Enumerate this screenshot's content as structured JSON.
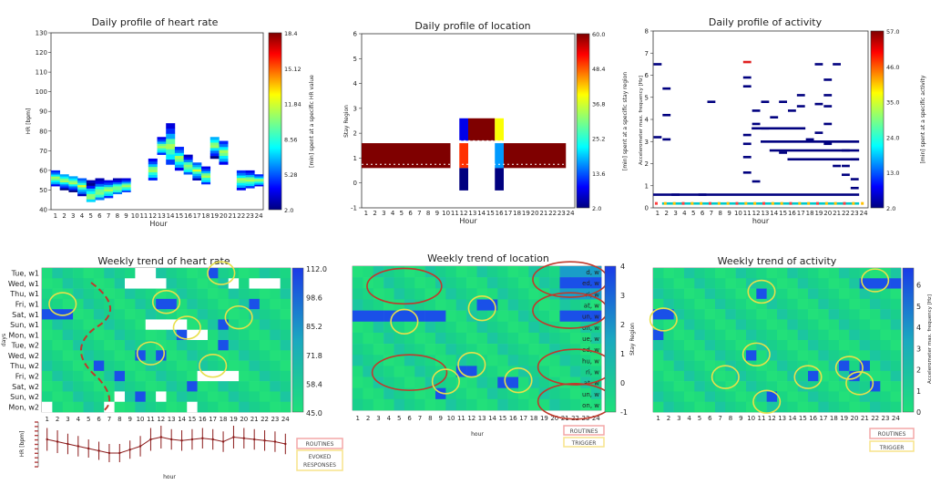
{
  "colormap": [
    "#00007f",
    "#0000ff",
    "#0080ff",
    "#00ffff",
    "#80ff80",
    "#ffff00",
    "#ff8000",
    "#ff0000",
    "#7f0000"
  ],
  "colors": {
    "weekly_base": "#1ad683",
    "weekly_mid": "#1bc6a0",
    "weekly_high": "#1a60e0",
    "ellipse_red": "#c0392b",
    "ellipse_yellow": "#e8e04a",
    "dashed": "#c0392b",
    "legend_red": "#f4a7a7",
    "legend_yellow": "#f7e38a",
    "hr_line": "#8b1a1a"
  },
  "hours": [
    "1",
    "2",
    "3",
    "4",
    "5",
    "6",
    "7",
    "8",
    "9",
    "10",
    "11",
    "12",
    "13",
    "14",
    "15",
    "16",
    "17",
    "18",
    "19",
    "20",
    "21",
    "22",
    "23",
    "24"
  ],
  "chart_data": [
    {
      "id": "hr_daily",
      "type": "heatmap",
      "title": "Daily profile of heart rate",
      "xlabel": "Hour",
      "ylabel": "HR [bpm]",
      "xlim": [
        1,
        24
      ],
      "ylim": [
        40,
        130
      ],
      "yticks": [
        "40",
        "50",
        "60",
        "70",
        "80",
        "90",
        "100",
        "110",
        "120",
        "130"
      ],
      "colorbar": {
        "ticks": [
          "2.0",
          "5.28",
          "8.56",
          "11.84",
          "15.12",
          "18.4"
        ],
        "label": "[min] spent at a specific HR value",
        "range": [
          2.0,
          18.4
        ]
      },
      "cells": [
        {
          "hour": 1,
          "hr": [
            52,
            60
          ],
          "peak": 56
        },
        {
          "hour": 2,
          "hr": [
            50,
            58
          ],
          "peak": 55
        },
        {
          "hour": 3,
          "hr": [
            49,
            57
          ],
          "peak": 54
        },
        {
          "hour": 4,
          "hr": [
            47,
            56
          ],
          "peak": 52
        },
        {
          "hour": 5,
          "hr": [
            44,
            55
          ],
          "peak": 47
        },
        {
          "hour": 6,
          "hr": [
            45,
            56
          ],
          "peak": 49
        },
        {
          "hour": 7,
          "hr": [
            46,
            55
          ],
          "peak": 50
        },
        {
          "hour": 8,
          "hr": [
            48,
            56
          ],
          "peak": 51
        },
        {
          "hour": 9,
          "hr": [
            49,
            56
          ],
          "peak": 52
        },
        {
          "hour": 12,
          "hr": [
            55,
            66
          ],
          "peak": 60
        },
        {
          "hour": 13,
          "hr": [
            68,
            77
          ],
          "peak": 72
        },
        {
          "hour": 14,
          "hr": [
            63,
            84
          ],
          "peak": 72
        },
        {
          "hour": 15,
          "hr": [
            60,
            72
          ],
          "peak": 66
        },
        {
          "hour": 16,
          "hr": [
            58,
            68
          ],
          "peak": 62
        },
        {
          "hour": 17,
          "hr": [
            55,
            64
          ],
          "peak": 60
        },
        {
          "hour": 18,
          "hr": [
            53,
            62
          ],
          "peak": 57
        },
        {
          "hour": 19,
          "hr": [
            66,
            77
          ],
          "peak": 73
        },
        {
          "hour": 20,
          "hr": [
            63,
            75
          ],
          "peak": 69
        },
        {
          "hour": 22,
          "hr": [
            50,
            60
          ],
          "peak": 55
        },
        {
          "hour": 23,
          "hr": [
            51,
            60
          ],
          "peak": 55
        },
        {
          "hour": 24,
          "hr": [
            52,
            58
          ],
          "peak": 55
        }
      ]
    },
    {
      "id": "loc_daily",
      "type": "heatmap",
      "title": "Daily profile of location",
      "xlabel": "Hour",
      "ylabel": "Stay Region",
      "xlim": [
        1,
        24
      ],
      "ylim": [
        -1,
        6
      ],
      "yticks": [
        "-1",
        "0",
        "1",
        "2",
        "3",
        "4",
        "5",
        "6"
      ],
      "colorbar": {
        "ticks": [
          "2.0",
          "13.6",
          "25.2",
          "36.8",
          "48.4",
          "60.0"
        ],
        "label": "[min] spent at a specific stay region",
        "range": [
          2.0,
          60.0
        ]
      },
      "cells": [
        {
          "h0": 1,
          "h1": 11,
          "region": 1,
          "value": 60
        },
        {
          "h0": 12,
          "h1": 13,
          "region": 2,
          "value": 8
        },
        {
          "h0": 12,
          "h1": 13,
          "region": 1,
          "value": 50
        },
        {
          "h0": 12,
          "h1": 13,
          "region": 0,
          "value": 2
        },
        {
          "h0": 13,
          "h1": 16,
          "region": 2,
          "value": 60
        },
        {
          "h0": 16,
          "h1": 17,
          "region": 2,
          "value": 38
        },
        {
          "h0": 16,
          "h1": 17,
          "region": 1,
          "value": 18
        },
        {
          "h0": 16,
          "h1": 17,
          "region": 0,
          "value": 2
        },
        {
          "h0": 17,
          "h1": 24,
          "region": 1,
          "value": 60
        }
      ]
    },
    {
      "id": "act_daily",
      "type": "heatmap",
      "title": "Daily profile of activity",
      "xlabel": "hour",
      "ylabel": "Accelerometer max. frequency [Hz]",
      "xlim": [
        1,
        24
      ],
      "ylim": [
        0,
        8
      ],
      "yticks": [
        "0",
        "1",
        "2",
        "3",
        "4",
        "5",
        "6",
        "7",
        "8"
      ],
      "colorbar": {
        "ticks": [
          "2.0",
          "13.0",
          "24.0",
          "35.0",
          "46.0",
          "57.0"
        ],
        "label": "[min] spent at a specific activity",
        "range": [
          2.0,
          57.0
        ]
      },
      "segments": [
        {
          "h": 1,
          "f": 6.5
        },
        {
          "h": 1,
          "f": 3.2
        },
        {
          "h": 2,
          "f": 5.4
        },
        {
          "h": 2,
          "f": 4.2
        },
        {
          "h": 2,
          "f": 3.1
        },
        {
          "h": 3,
          "f": 0.6
        },
        {
          "h": 6,
          "f": 0.6
        },
        {
          "h": 7,
          "f": 4.8
        },
        {
          "h": 11,
          "f": 6.6,
          "hot": 1
        },
        {
          "h": 11,
          "f": 5.9
        },
        {
          "h": 11,
          "f": 5.5
        },
        {
          "h": 11,
          "f": 3.3
        },
        {
          "h": 11,
          "f": 2.9
        },
        {
          "h": 11,
          "f": 2.3
        },
        {
          "h": 11,
          "f": 1.6
        },
        {
          "h": 12,
          "f": 4.4
        },
        {
          "h": 12,
          "f": 3.8
        },
        {
          "h": 12,
          "f": 1.2
        },
        {
          "h": 13,
          "f": 4.8
        },
        {
          "h": 13,
          "f": 3.6
        },
        {
          "h": 14,
          "f": 4.1
        },
        {
          "h": 15,
          "f": 4.8
        },
        {
          "h": 15,
          "f": 2.5
        },
        {
          "h": 16,
          "f": 4.4
        },
        {
          "h": 17,
          "f": 5.1
        },
        {
          "h": 17,
          "f": 4.6
        },
        {
          "h": 18,
          "f": 3.1
        },
        {
          "h": 19,
          "f": 6.5
        },
        {
          "h": 19,
          "f": 4.7
        },
        {
          "h": 19,
          "f": 3.4
        },
        {
          "h": 20,
          "f": 5.8
        },
        {
          "h": 20,
          "f": 5.1
        },
        {
          "h": 20,
          "f": 4.6
        },
        {
          "h": 20,
          "f": 3.8
        },
        {
          "h": 20,
          "f": 2.9
        },
        {
          "h": 21,
          "f": 6.5
        },
        {
          "h": 21,
          "f": 1.9
        },
        {
          "h": 22,
          "f": 2.6
        },
        {
          "h": 22,
          "f": 1.9
        },
        {
          "h": 22,
          "f": 1.5
        },
        {
          "h": 23,
          "f": 2.2
        },
        {
          "h": 23,
          "f": 1.3
        },
        {
          "h": 23,
          "f": 0.9
        }
      ],
      "bands": [
        {
          "h0": 12,
          "h1": 18,
          "f": 3.6
        },
        {
          "h0": 13,
          "h1": 24,
          "f": 3.0
        },
        {
          "h0": 14,
          "h1": 24,
          "f": 2.6
        },
        {
          "h0": 16,
          "h1": 24,
          "f": 2.2
        },
        {
          "h0": 1,
          "h1": 24,
          "f": 0.6
        },
        {
          "h0": 2,
          "h1": 24,
          "f": 0.2
        }
      ]
    },
    {
      "id": "hr_weekly",
      "type": "heatmap",
      "title": "Weekly trend of heart rate",
      "xlabel": "",
      "ylabel": "days",
      "rows": [
        "Tue, w1",
        "Wed, w1",
        "Thu, w1",
        "Fri, w1",
        "Sat, w1",
        "Sun, w1",
        "Mon, w1",
        "Tue, w2",
        "Wed, w2",
        "Thu, w2",
        "Fri, w2",
        "Sat, w2",
        "Sun, w2",
        "Mon, w2"
      ],
      "colorbar": {
        "ticks": [
          "45.0",
          "58.4",
          "71.8",
          "85.2",
          "98.6",
          "112.0"
        ],
        "range": [
          45,
          112
        ]
      },
      "missing": [
        [
          0,
          9
        ],
        [
          0,
          10
        ],
        [
          1,
          8
        ],
        [
          1,
          9
        ],
        [
          1,
          10
        ],
        [
          1,
          11
        ],
        [
          1,
          18
        ],
        [
          1,
          20
        ],
        [
          1,
          21
        ],
        [
          1,
          22
        ],
        [
          5,
          10
        ],
        [
          5,
          11
        ],
        [
          5,
          12
        ],
        [
          5,
          13
        ],
        [
          6,
          14
        ],
        [
          6,
          15
        ],
        [
          10,
          15
        ],
        [
          10,
          16
        ],
        [
          10,
          17
        ],
        [
          10,
          18
        ],
        [
          12,
          7
        ],
        [
          12,
          11
        ],
        [
          13,
          0
        ],
        [
          13,
          6
        ],
        [
          13,
          14
        ]
      ],
      "highs": [
        [
          0,
          16
        ],
        [
          3,
          11
        ],
        [
          3,
          12
        ],
        [
          4,
          0
        ],
        [
          4,
          1
        ],
        [
          4,
          2
        ],
        [
          6,
          13
        ],
        [
          8,
          9
        ],
        [
          8,
          11
        ],
        [
          10,
          7
        ],
        [
          11,
          14
        ],
        [
          5,
          17
        ],
        [
          9,
          5
        ],
        [
          12,
          9
        ],
        [
          3,
          20
        ],
        [
          7,
          17
        ]
      ],
      "ellipses": [
        [
          2,
          3.5,
          "y"
        ],
        [
          12,
          3.3,
          "y"
        ],
        [
          10.5,
          8.3,
          "y"
        ],
        [
          16.5,
          9.5,
          "y"
        ],
        [
          14,
          5.8,
          "y"
        ],
        [
          19,
          4.8,
          "y"
        ],
        [
          17.3,
          0.5,
          "y"
        ]
      ]
    },
    {
      "id": "loc_weekly",
      "type": "heatmap",
      "title": "Weekly trend of location",
      "xlabel": "hour",
      "ylabel": "Stay Region",
      "rows": [
        "d, w",
        "ed, w",
        "ri, w",
        "at, w",
        "un, w",
        "on, w",
        "ue, w",
        "ed, w",
        "hu, w",
        "ri, w",
        "at, w",
        "un, w",
        "on, w"
      ],
      "yticks": [
        "-1",
        "0",
        "1",
        "2",
        "3",
        "4"
      ],
      "colorbar": {
        "range": [
          -1,
          4
        ]
      },
      "highs": [
        [
          4,
          0
        ],
        [
          4,
          1
        ],
        [
          4,
          2
        ],
        [
          4,
          3
        ],
        [
          4,
          4
        ],
        [
          4,
          5
        ],
        [
          4,
          6
        ],
        [
          4,
          7
        ],
        [
          4,
          8
        ],
        [
          4,
          20
        ],
        [
          4,
          21
        ],
        [
          4,
          22
        ],
        [
          4,
          23
        ],
        [
          1,
          20
        ],
        [
          1,
          21
        ],
        [
          1,
          22
        ],
        [
          1,
          23
        ],
        [
          3,
          12
        ],
        [
          3,
          13
        ],
        [
          9,
          10
        ],
        [
          9,
          11
        ],
        [
          10,
          14
        ],
        [
          10,
          15
        ],
        [
          11,
          8
        ]
      ],
      "mids": [
        [
          0,
          20
        ],
        [
          0,
          21
        ],
        [
          0,
          22
        ],
        [
          0,
          23
        ],
        [
          2,
          20
        ],
        [
          2,
          21
        ],
        [
          2,
          22
        ],
        [
          2,
          23
        ]
      ],
      "ellipses": [
        [
          5,
          1.8,
          "r"
        ],
        [
          5,
          5,
          "y"
        ],
        [
          21,
          1.2,
          "r"
        ],
        [
          21,
          4,
          "r"
        ],
        [
          12.5,
          3.8,
          "y"
        ],
        [
          5.5,
          9.6,
          "r"
        ],
        [
          11.5,
          8.9,
          "y"
        ],
        [
          9,
          10.4,
          "y"
        ],
        [
          16,
          10.3,
          "y"
        ],
        [
          21.5,
          9.1,
          "r"
        ],
        [
          21.5,
          12.2,
          "r"
        ]
      ]
    },
    {
      "id": "act_weekly",
      "type": "heatmap",
      "title": "Weekly trend of activity",
      "xlabel": "",
      "ylabel": "Accelerometer max. frequency [Hz]",
      "yticks": [
        "0",
        "1",
        "2",
        "3",
        "4",
        "5",
        "6"
      ],
      "colorbar": {
        "range": [
          0,
          6.8
        ]
      },
      "highs": [
        [
          1,
          20
        ],
        [
          1,
          21
        ],
        [
          1,
          22
        ],
        [
          1,
          23
        ],
        [
          2,
          10
        ],
        [
          4,
          0
        ],
        [
          4,
          1
        ],
        [
          6,
          0
        ],
        [
          8,
          9
        ],
        [
          9,
          18
        ],
        [
          9,
          20
        ],
        [
          10,
          15
        ],
        [
          10,
          19
        ],
        [
          11,
          21
        ],
        [
          12,
          11
        ]
      ],
      "ellipses": [
        [
          21.5,
          1.2,
          "y"
        ],
        [
          10.5,
          2.3,
          "y"
        ],
        [
          1,
          5,
          "y"
        ],
        [
          10,
          8.4,
          "y"
        ],
        [
          19,
          9.7,
          "y"
        ],
        [
          15,
          10.6,
          "y"
        ],
        [
          7,
          10.6,
          "y"
        ],
        [
          20,
          11.2,
          "y"
        ],
        [
          11,
          13,
          "y"
        ]
      ]
    },
    {
      "id": "hr_mini",
      "type": "line",
      "title": "",
      "xlabel": "hour",
      "ylabel": "HR [bpm]",
      "x": [
        1,
        2,
        3,
        4,
        5,
        6,
        7,
        8,
        9,
        10,
        11,
        12,
        13,
        14,
        15,
        16,
        17,
        18,
        19,
        20,
        21,
        22,
        23,
        24
      ],
      "values": [
        72,
        70,
        68,
        66,
        64,
        62,
        60,
        60,
        63,
        66,
        72,
        74,
        72,
        71,
        72,
        73,
        72,
        70,
        74,
        73,
        72,
        71,
        70,
        68
      ],
      "err": [
        10,
        10,
        9,
        9,
        8,
        8,
        8,
        8,
        8,
        9,
        10,
        10,
        9,
        9,
        9,
        9,
        9,
        9,
        10,
        9,
        9,
        9,
        9,
        9
      ]
    }
  ],
  "legends": {
    "routines": "ROUTINES",
    "evoked": "EVOKED RESPONSES",
    "trigger": "TRIGGER"
  }
}
